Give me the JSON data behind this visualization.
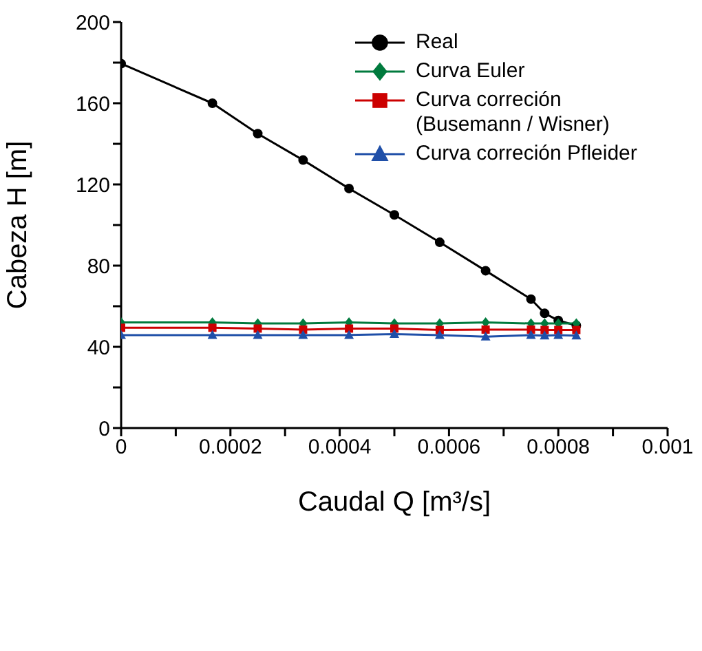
{
  "chart_data": {
    "type": "line",
    "xlabel": "Caudal Q [m³/s]",
    "ylabel": "Cabeza H [m]",
    "x": [
      0,
      0.000167,
      0.00025,
      0.000333,
      0.000417,
      0.0005,
      0.000583,
      0.000667,
      0.00075,
      0.000775,
      0.0008,
      0.000833
    ],
    "series": [
      {
        "name": "Real",
        "color": "#000000",
        "marker": "circle",
        "values": [
          179.5,
          160,
          145,
          132,
          118,
          105,
          91.5,
          77.5,
          63.5,
          56.5,
          53,
          50.5
        ]
      },
      {
        "name": "Curva Euler",
        "color": "#007a3d",
        "marker": "diamond",
        "values": [
          52,
          52,
          51.5,
          51.5,
          52,
          51.5,
          51.5,
          52,
          51.5,
          51.5,
          51.5,
          51.5
        ]
      },
      {
        "name": "Curva correción (Busemann / Wisner)",
        "color": "#cc0000",
        "marker": "square",
        "values": [
          49.4,
          49.4,
          49,
          48.5,
          49,
          49,
          48.3,
          48.5,
          48.5,
          48.3,
          48.3,
          48.3
        ]
      },
      {
        "name": "Curva correción Pfleider",
        "color": "#1f4fa8",
        "marker": "triangle",
        "values": [
          45.8,
          45.8,
          45.8,
          45.8,
          45.8,
          46.3,
          45.8,
          45,
          45.8,
          45.5,
          45.8,
          45.5
        ]
      }
    ],
    "xlim": [
      0,
      0.001
    ],
    "xticks": [
      0,
      {
        "value": 0.0001,
        "label": null
      },
      0.0002,
      {
        "value": 0.0003,
        "label": null
      },
      0.0004,
      {
        "value": 0.0005,
        "label": null
      },
      0.0006,
      {
        "value": 0.0007,
        "label": null
      },
      0.0008,
      {
        "value": 0.0009,
        "label": null
      },
      0.001
    ],
    "ylim": [
      0,
      200
    ],
    "yticks": [
      0,
      {
        "value": 20,
        "label": null
      },
      40,
      {
        "value": 60,
        "label": null
      },
      80,
      {
        "value": 100,
        "label": null
      },
      120,
      {
        "value": 140,
        "label": null
      },
      160,
      {
        "value": 180,
        "label": null
      },
      200
    ],
    "grid": false,
    "legend": "top right",
    "line_style": "solid"
  }
}
